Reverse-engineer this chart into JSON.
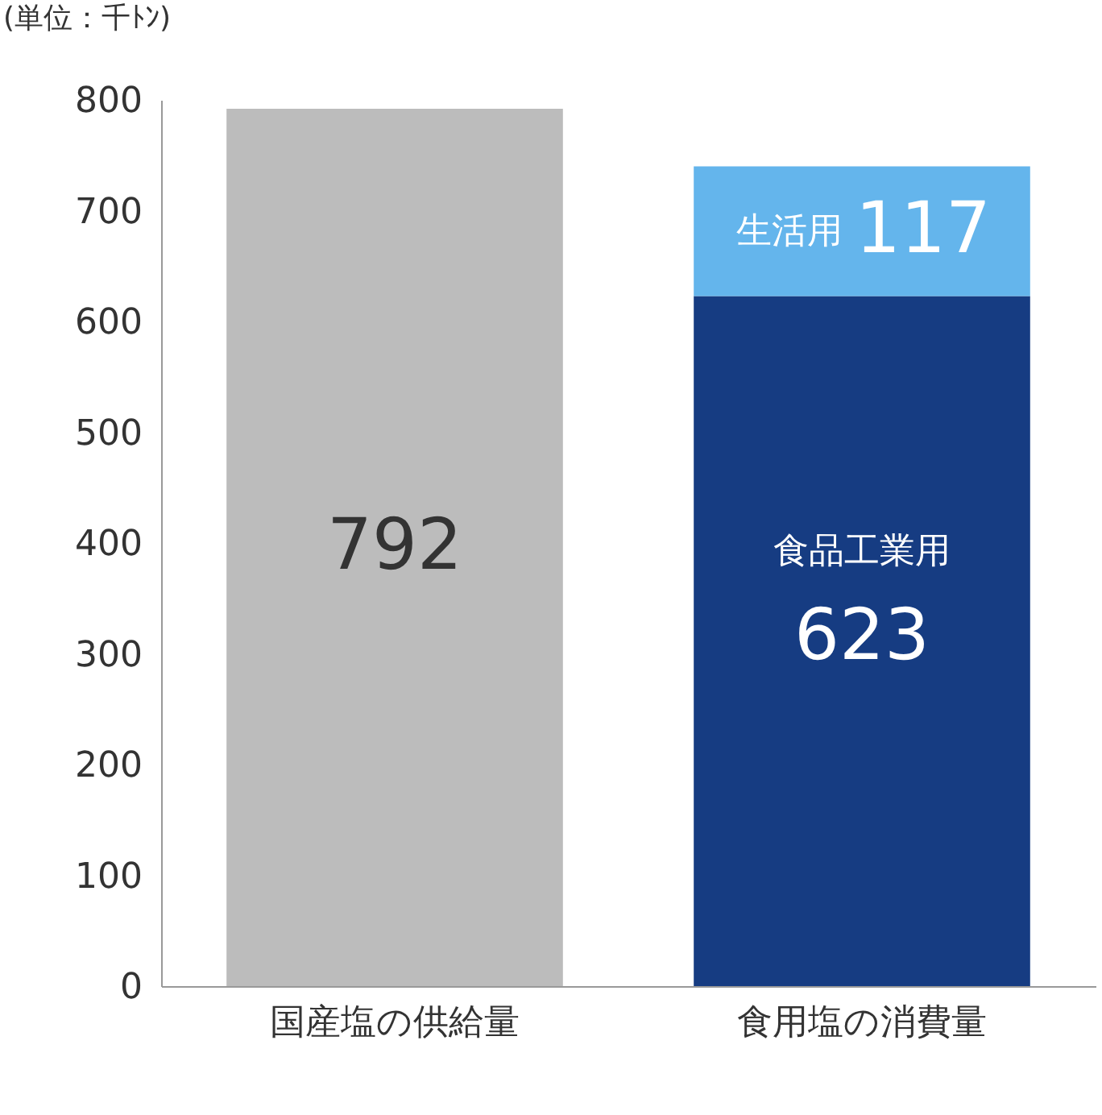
{
  "chart_data": {
    "type": "bar",
    "stacked": true,
    "data_labels": true,
    "annotations": [
      "(単位：千ﾄﾝ)"
    ],
    "categories": [
      "国産塩の供給量",
      "食用塩の消費量"
    ],
    "ylim": [
      0,
      800
    ],
    "yticks": [
      0,
      100,
      200,
      300,
      400,
      500,
      600,
      700,
      800
    ],
    "grid": false,
    "legend": false,
    "series": [
      {
        "color": "#bcbcbc",
        "values": [
          792,
          null
        ]
      },
      {
        "name": "食品工業用",
        "color": "#163c82",
        "values": [
          null,
          623
        ]
      },
      {
        "name": "生活用",
        "color": "#64b5ec",
        "values": [
          null,
          117
        ]
      }
    ]
  }
}
